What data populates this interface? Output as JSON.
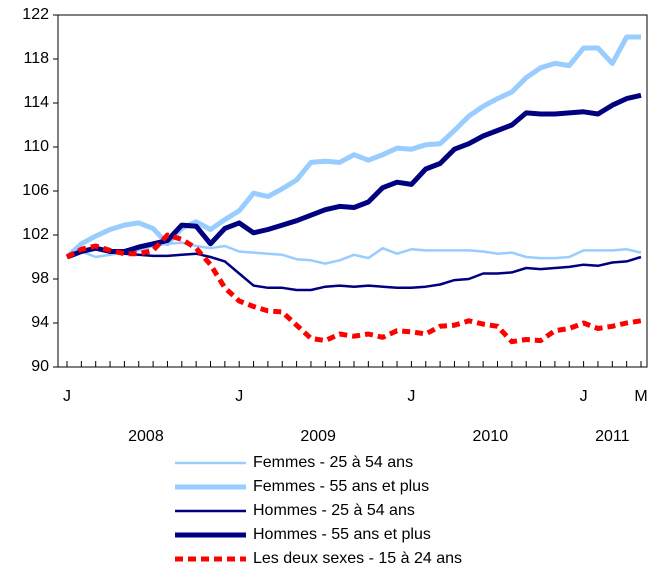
{
  "chart_data": {
    "type": "line",
    "categories": [
      "J",
      null,
      null,
      null,
      null,
      null,
      null,
      null,
      null,
      null,
      null,
      null,
      "J",
      null,
      null,
      null,
      null,
      null,
      null,
      null,
      null,
      null,
      null,
      null,
      "J",
      null,
      null,
      null,
      null,
      null,
      null,
      null,
      null,
      null,
      null,
      null,
      "J",
      null,
      null,
      null,
      "M"
    ],
    "year_labels": [
      "2008",
      "2009",
      "2010",
      "2011"
    ],
    "ylim": [
      90,
      122
    ],
    "yticks": [
      90,
      94,
      98,
      102,
      106,
      110,
      114,
      118,
      122
    ],
    "grid": false,
    "legend": "bottom",
    "series": [
      {
        "name": "Femmes - 25 à 54 ans",
        "color": "#99ccff",
        "width": "thin",
        "dashed": false,
        "values": [
          100,
          100.5,
          100,
          100.2,
          100.4,
          100.6,
          101,
          101.2,
          101.3,
          101,
          100.8,
          101,
          100.5,
          100.4,
          100.3,
          100.2,
          99.8,
          99.7,
          99.4,
          99.7,
          100.2,
          99.9,
          100.8,
          100.3,
          100.7,
          100.6,
          100.6,
          100.6,
          100.6,
          100.5,
          100.3,
          100.4,
          100,
          99.9,
          99.9,
          100,
          100.6,
          100.6,
          100.6,
          100.7,
          100.4
        ]
      },
      {
        "name": "Femmes - 55 ans et plus",
        "color": "#99ccff",
        "width": "thick",
        "dashed": false,
        "values": [
          100,
          101.2,
          101.9,
          102.5,
          102.9,
          103.1,
          102.6,
          101.2,
          102.6,
          103.2,
          102.5,
          103.4,
          104.2,
          105.8,
          105.5,
          106.2,
          107,
          108.6,
          108.7,
          108.6,
          109.3,
          108.8,
          109.3,
          109.9,
          109.8,
          110.2,
          110.3,
          111.5,
          112.8,
          113.7,
          114.4,
          115,
          116.3,
          117.2,
          117.6,
          117.4,
          119,
          119,
          117.6,
          120,
          120
        ]
      },
      {
        "name": "Hommes - 25 à 54 ans",
        "color": "#000080",
        "width": "thin",
        "dashed": false,
        "values": [
          100,
          100.4,
          100.7,
          100.5,
          100.3,
          100.2,
          100.1,
          100.1,
          100.2,
          100.3,
          100,
          99.6,
          98.5,
          97.4,
          97.2,
          97.2,
          97,
          97,
          97.3,
          97.4,
          97.3,
          97.4,
          97.3,
          97.2,
          97.2,
          97.3,
          97.5,
          97.9,
          98,
          98.5,
          98.5,
          98.6,
          99,
          98.9,
          99,
          99.1,
          99.3,
          99.2,
          99.5,
          99.6,
          100
        ]
      },
      {
        "name": "Hommes - 55 ans et plus",
        "color": "#000080",
        "width": "thick",
        "dashed": false,
        "values": [
          100,
          100.5,
          100.8,
          100.5,
          100.5,
          100.9,
          101.2,
          101.5,
          102.9,
          102.8,
          101.2,
          102.6,
          103.1,
          102.2,
          102.5,
          102.9,
          103.3,
          103.8,
          104.3,
          104.6,
          104.5,
          105,
          106.3,
          106.8,
          106.6,
          108,
          108.5,
          109.8,
          110.3,
          111,
          111.5,
          112,
          113.1,
          113,
          113,
          113.1,
          113.2,
          113,
          113.8,
          114.4,
          114.7
        ]
      },
      {
        "name": "Les deux sexes - 15 à 24 ans",
        "color": "#ff0000",
        "width": "thick",
        "dashed": true,
        "values": [
          100,
          100.7,
          101,
          100.6,
          100.3,
          100.3,
          100.6,
          102,
          101.6,
          100.8,
          99.3,
          97.2,
          96,
          95.5,
          95.1,
          95,
          93.8,
          92.6,
          92.4,
          93,
          92.8,
          93,
          92.7,
          93.3,
          93.2,
          93,
          93.7,
          93.8,
          94.2,
          93.9,
          93.7,
          92.3,
          92.5,
          92.4,
          93.3,
          93.5,
          94,
          93.5,
          93.7,
          94,
          94.2
        ]
      }
    ]
  }
}
